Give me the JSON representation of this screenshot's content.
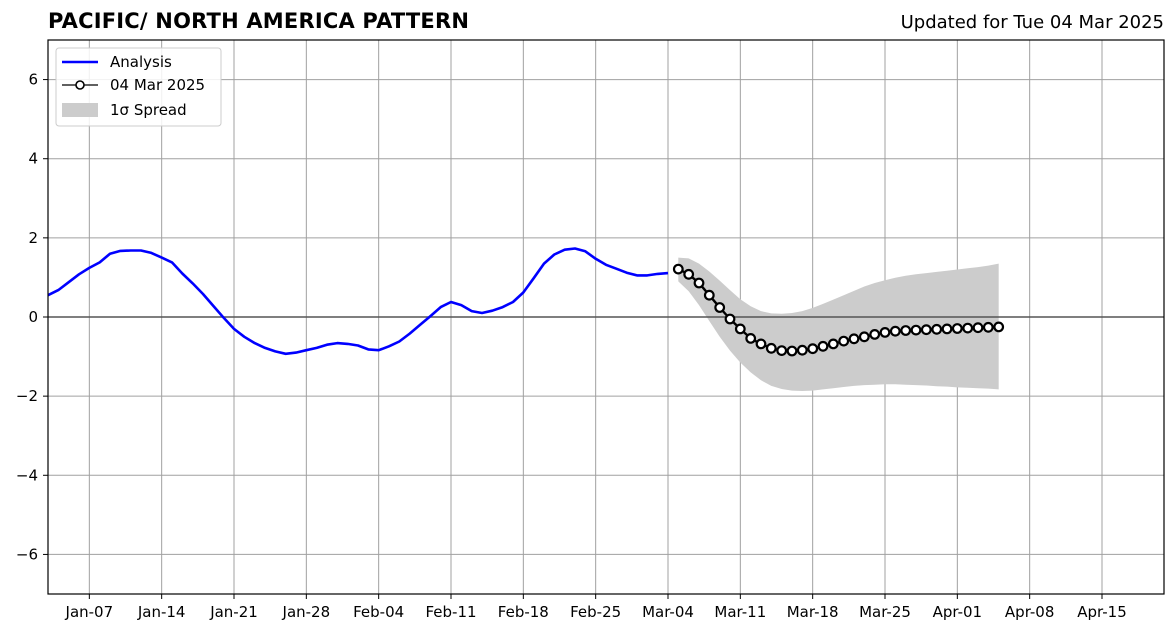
{
  "header": {
    "title": "PACIFIC/ NORTH AMERICA PATTERN",
    "updated": "Updated for Tue 04 Mar 2025"
  },
  "chart_data": {
    "type": "line",
    "title": "PACIFIC/ NORTH AMERICA PATTERN",
    "subtitle": "Updated for Tue 04 Mar 2025",
    "xlabel": "",
    "ylabel": "",
    "ylim": [
      -7,
      7
    ],
    "xlim": [
      "2025-01-03",
      "2025-04-21"
    ],
    "grid": true,
    "legend_position": "top-left",
    "y_ticks": [
      "−6",
      "−4",
      "−2",
      "0",
      "2",
      "4",
      "6"
    ],
    "y_tick_values": [
      -6,
      -4,
      -2,
      0,
      2,
      4,
      6
    ],
    "x_ticks": [
      {
        "date": "2025-01-07",
        "label": "Jan-07"
      },
      {
        "date": "2025-01-14",
        "label": "Jan-14"
      },
      {
        "date": "2025-01-21",
        "label": "Jan-21"
      },
      {
        "date": "2025-01-28",
        "label": "Jan-28"
      },
      {
        "date": "2025-02-04",
        "label": "Feb-04"
      },
      {
        "date": "2025-02-11",
        "label": "Feb-11"
      },
      {
        "date": "2025-02-18",
        "label": "Feb-18"
      },
      {
        "date": "2025-02-25",
        "label": "Feb-25"
      },
      {
        "date": "2025-03-04",
        "label": "Mar-04"
      },
      {
        "date": "2025-03-11",
        "label": "Mar-11"
      },
      {
        "date": "2025-03-18",
        "label": "Mar-18"
      },
      {
        "date": "2025-03-25",
        "label": "Mar-25"
      },
      {
        "date": "2025-04-01",
        "label": "Apr-01"
      },
      {
        "date": "2025-04-08",
        "label": "Apr-08"
      },
      {
        "date": "2025-04-15",
        "label": "Apr-15"
      }
    ],
    "legend": [
      {
        "label": "Analysis",
        "color": "#0000ff",
        "style": "line"
      },
      {
        "label": "04 Mar 2025",
        "color": "#000000",
        "style": "line-marker"
      },
      {
        "label": "1σ Spread",
        "color": "#cccccc",
        "style": "patch"
      }
    ],
    "series": [
      {
        "name": "Analysis",
        "color": "#0000ff",
        "points": [
          [
            "2025-01-03",
            0.55
          ],
          [
            "2025-01-04",
            0.68
          ],
          [
            "2025-01-05",
            0.88
          ],
          [
            "2025-01-06",
            1.08
          ],
          [
            "2025-01-07",
            1.24
          ],
          [
            "2025-01-08",
            1.38
          ],
          [
            "2025-01-09",
            1.6
          ],
          [
            "2025-01-10",
            1.67
          ],
          [
            "2025-01-11",
            1.68
          ],
          [
            "2025-01-12",
            1.68
          ],
          [
            "2025-01-13",
            1.62
          ],
          [
            "2025-01-14",
            1.5
          ],
          [
            "2025-01-15",
            1.38
          ],
          [
            "2025-01-16",
            1.1
          ],
          [
            "2025-01-17",
            0.85
          ],
          [
            "2025-01-18",
            0.58
          ],
          [
            "2025-01-19",
            0.28
          ],
          [
            "2025-01-20",
            -0.02
          ],
          [
            "2025-01-21",
            -0.3
          ],
          [
            "2025-01-22",
            -0.5
          ],
          [
            "2025-01-23",
            -0.66
          ],
          [
            "2025-01-24",
            -0.78
          ],
          [
            "2025-01-25",
            -0.87
          ],
          [
            "2025-01-26",
            -0.93
          ],
          [
            "2025-01-27",
            -0.9
          ],
          [
            "2025-01-28",
            -0.84
          ],
          [
            "2025-01-29",
            -0.78
          ],
          [
            "2025-01-30",
            -0.7
          ],
          [
            "2025-01-31",
            -0.66
          ],
          [
            "2025-02-01",
            -0.68
          ],
          [
            "2025-02-02",
            -0.72
          ],
          [
            "2025-02-03",
            -0.82
          ],
          [
            "2025-02-04",
            -0.84
          ],
          [
            "2025-02-05",
            -0.74
          ],
          [
            "2025-02-06",
            -0.62
          ],
          [
            "2025-02-07",
            -0.42
          ],
          [
            "2025-02-08",
            -0.2
          ],
          [
            "2025-02-09",
            0.02
          ],
          [
            "2025-02-10",
            0.25
          ],
          [
            "2025-02-11",
            0.38
          ],
          [
            "2025-02-12",
            0.3
          ],
          [
            "2025-02-13",
            0.15
          ],
          [
            "2025-02-14",
            0.1
          ],
          [
            "2025-02-15",
            0.16
          ],
          [
            "2025-02-16",
            0.25
          ],
          [
            "2025-02-17",
            0.38
          ],
          [
            "2025-02-18",
            0.62
          ],
          [
            "2025-02-19",
            0.98
          ],
          [
            "2025-02-20",
            1.35
          ],
          [
            "2025-02-21",
            1.58
          ],
          [
            "2025-02-22",
            1.7
          ],
          [
            "2025-02-23",
            1.73
          ],
          [
            "2025-02-24",
            1.66
          ],
          [
            "2025-02-25",
            1.47
          ],
          [
            "2025-02-26",
            1.32
          ],
          [
            "2025-02-27",
            1.22
          ],
          [
            "2025-02-28",
            1.12
          ],
          [
            "2025-03-01",
            1.05
          ],
          [
            "2025-03-02",
            1.05
          ],
          [
            "2025-03-03",
            1.09
          ],
          [
            "2025-03-04",
            1.11
          ]
        ]
      },
      {
        "name": "04 Mar 2025",
        "color": "#000000",
        "points": [
          [
            "2025-03-05",
            1.21
          ],
          [
            "2025-03-06",
            1.08
          ],
          [
            "2025-03-07",
            0.86
          ],
          [
            "2025-03-08",
            0.55
          ],
          [
            "2025-03-09",
            0.24
          ],
          [
            "2025-03-10",
            -0.05
          ],
          [
            "2025-03-11",
            -0.3
          ],
          [
            "2025-03-12",
            -0.54
          ],
          [
            "2025-03-13",
            -0.68
          ],
          [
            "2025-03-14",
            -0.79
          ],
          [
            "2025-03-15",
            -0.85
          ],
          [
            "2025-03-16",
            -0.86
          ],
          [
            "2025-03-17",
            -0.84
          ],
          [
            "2025-03-18",
            -0.8
          ],
          [
            "2025-03-19",
            -0.74
          ],
          [
            "2025-03-20",
            -0.68
          ],
          [
            "2025-03-21",
            -0.61
          ],
          [
            "2025-03-22",
            -0.55
          ],
          [
            "2025-03-23",
            -0.5
          ],
          [
            "2025-03-24",
            -0.44
          ],
          [
            "2025-03-25",
            -0.39
          ],
          [
            "2025-03-26",
            -0.36
          ],
          [
            "2025-03-27",
            -0.34
          ],
          [
            "2025-03-28",
            -0.33
          ],
          [
            "2025-03-29",
            -0.32
          ],
          [
            "2025-03-30",
            -0.31
          ],
          [
            "2025-03-31",
            -0.3
          ],
          [
            "2025-04-01",
            -0.29
          ],
          [
            "2025-04-02",
            -0.28
          ],
          [
            "2025-04-03",
            -0.27
          ],
          [
            "2025-04-04",
            -0.26
          ],
          [
            "2025-04-05",
            -0.25
          ]
        ]
      }
    ],
    "spread": {
      "name": "1σ Spread",
      "color": "#cccccc",
      "upper": [
        [
          "2025-03-05",
          1.5
        ],
        [
          "2025-03-06",
          1.48
        ],
        [
          "2025-03-07",
          1.35
        ],
        [
          "2025-03-08",
          1.15
        ],
        [
          "2025-03-09",
          0.92
        ],
        [
          "2025-03-10",
          0.68
        ],
        [
          "2025-03-11",
          0.45
        ],
        [
          "2025-03-12",
          0.27
        ],
        [
          "2025-03-13",
          0.15
        ],
        [
          "2025-03-14",
          0.09
        ],
        [
          "2025-03-15",
          0.08
        ],
        [
          "2025-03-16",
          0.1
        ],
        [
          "2025-03-17",
          0.15
        ],
        [
          "2025-03-18",
          0.23
        ],
        [
          "2025-03-19",
          0.33
        ],
        [
          "2025-03-20",
          0.44
        ],
        [
          "2025-03-21",
          0.55
        ],
        [
          "2025-03-22",
          0.66
        ],
        [
          "2025-03-23",
          0.77
        ],
        [
          "2025-03-24",
          0.86
        ],
        [
          "2025-03-25",
          0.93
        ],
        [
          "2025-03-26",
          0.99
        ],
        [
          "2025-03-27",
          1.04
        ],
        [
          "2025-03-28",
          1.08
        ],
        [
          "2025-03-29",
          1.11
        ],
        [
          "2025-03-30",
          1.14
        ],
        [
          "2025-03-31",
          1.17
        ],
        [
          "2025-04-01",
          1.2
        ],
        [
          "2025-04-02",
          1.23
        ],
        [
          "2025-04-03",
          1.26
        ],
        [
          "2025-04-04",
          1.3
        ],
        [
          "2025-04-05",
          1.35
        ]
      ],
      "lower": [
        [
          "2025-03-05",
          0.9
        ],
        [
          "2025-03-06",
          0.65
        ],
        [
          "2025-03-07",
          0.3
        ],
        [
          "2025-03-08",
          -0.1
        ],
        [
          "2025-03-09",
          -0.5
        ],
        [
          "2025-03-10",
          -0.85
        ],
        [
          "2025-03-11",
          -1.15
        ],
        [
          "2025-03-12",
          -1.4
        ],
        [
          "2025-03-13",
          -1.6
        ],
        [
          "2025-03-14",
          -1.74
        ],
        [
          "2025-03-15",
          -1.82
        ],
        [
          "2025-03-16",
          -1.86
        ],
        [
          "2025-03-17",
          -1.87
        ],
        [
          "2025-03-18",
          -1.86
        ],
        [
          "2025-03-19",
          -1.83
        ],
        [
          "2025-03-20",
          -1.8
        ],
        [
          "2025-03-21",
          -1.77
        ],
        [
          "2025-03-22",
          -1.74
        ],
        [
          "2025-03-23",
          -1.72
        ],
        [
          "2025-03-24",
          -1.71
        ],
        [
          "2025-03-25",
          -1.7
        ],
        [
          "2025-03-26",
          -1.7
        ],
        [
          "2025-03-27",
          -1.71
        ],
        [
          "2025-03-28",
          -1.72
        ],
        [
          "2025-03-29",
          -1.73
        ],
        [
          "2025-03-30",
          -1.75
        ],
        [
          "2025-03-31",
          -1.76
        ],
        [
          "2025-04-01",
          -1.78
        ],
        [
          "2025-04-02",
          -1.79
        ],
        [
          "2025-04-03",
          -1.8
        ],
        [
          "2025-04-04",
          -1.81
        ],
        [
          "2025-04-05",
          -1.83
        ]
      ]
    }
  }
}
